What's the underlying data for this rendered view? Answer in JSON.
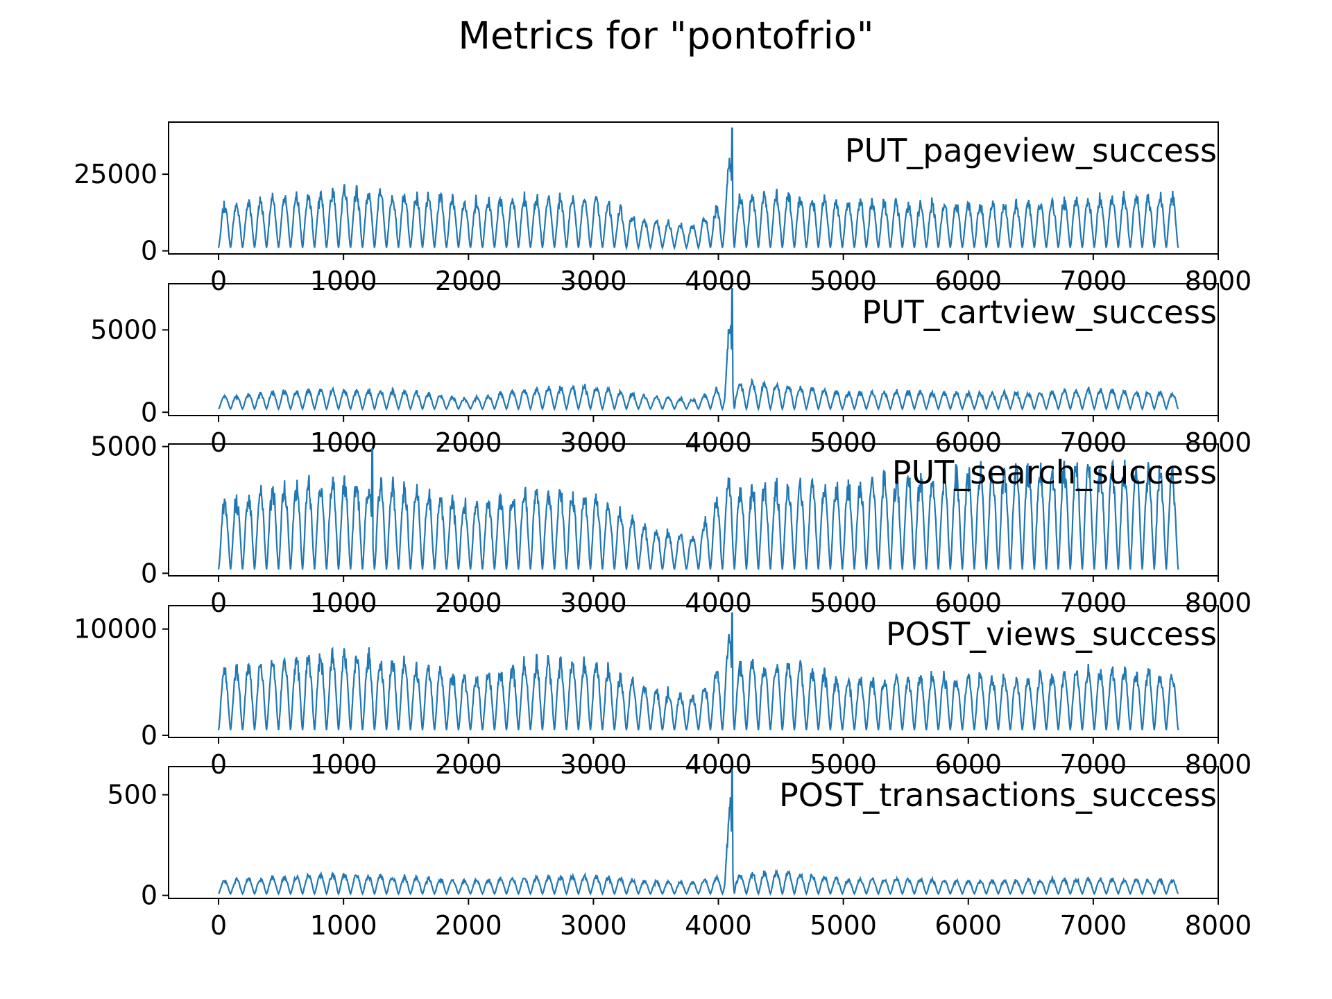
{
  "figure": {
    "title": "Metrics for \"pontofrio\""
  },
  "chart_data": [
    {
      "type": "line",
      "label": "PUT_pageview_success",
      "xlim": [
        -400,
        8000
      ],
      "ylim": [
        -1000,
        42000
      ],
      "xticks": [
        0,
        1000,
        2000,
        3000,
        4000,
        5000,
        6000,
        7000,
        8000
      ],
      "yticks": [
        0,
        25000
      ],
      "color": "#1f77b4",
      "pattern": {
        "x_max": 7680,
        "period": 96,
        "base_low": 1000,
        "envelope_x": [
          0,
          500,
          1000,
          1500,
          2000,
          2500,
          3000,
          3400,
          3800,
          4050,
          4100,
          4150,
          4500,
          5000,
          5500,
          6000,
          6500,
          7000,
          7680
        ],
        "envelope_y": [
          16000,
          19000,
          22000,
          20000,
          18000,
          19000,
          19000,
          11000,
          9000,
          18000,
          40000,
          20000,
          20000,
          18000,
          17000,
          17000,
          17000,
          19000,
          20000
        ],
        "spike_x": 4110,
        "spike_y": 40000
      }
    },
    {
      "type": "line",
      "label": "PUT_cartview_success",
      "xlim": [
        -400,
        8000
      ],
      "ylim": [
        -200,
        7800
      ],
      "xticks": [
        0,
        1000,
        2000,
        3000,
        4000,
        5000,
        6000,
        7000,
        8000
      ],
      "yticks": [
        0,
        5000
      ],
      "color": "#1f77b4",
      "pattern": {
        "x_max": 7680,
        "period": 96,
        "base_low": 200,
        "envelope_x": [
          0,
          500,
          1000,
          1500,
          2000,
          2500,
          3000,
          3400,
          3800,
          4050,
          4100,
          4150,
          4500,
          5000,
          5500,
          6000,
          6500,
          7000,
          7680
        ],
        "envelope_y": [
          1000,
          1400,
          1500,
          1400,
          900,
          1600,
          1700,
          1100,
          900,
          1700,
          7500,
          2000,
          1900,
          1300,
          1400,
          1300,
          1300,
          1500,
          1300
        ],
        "spike_x": 4110,
        "spike_y": 7500
      }
    },
    {
      "type": "line",
      "label": "PUT_search_success",
      "xlim": [
        -400,
        8000
      ],
      "ylim": [
        -100,
        5100
      ],
      "xticks": [
        0,
        1000,
        2000,
        3000,
        4000,
        5000,
        6000,
        7000,
        8000
      ],
      "yticks": [
        0,
        5000
      ],
      "color": "#1f77b4",
      "pattern": {
        "x_max": 7680,
        "period": 96,
        "base_low": 150,
        "envelope_x": [
          0,
          500,
          1000,
          1500,
          2000,
          2500,
          3000,
          3400,
          3800,
          4050,
          4100,
          4150,
          4500,
          5000,
          5500,
          6000,
          6500,
          7000,
          7680
        ],
        "envelope_y": [
          3000,
          3800,
          4000,
          3700,
          3000,
          3600,
          3500,
          2000,
          1600,
          3700,
          4200,
          3700,
          3800,
          3800,
          4200,
          4300,
          4600,
          4600,
          4400
        ],
        "spike_x": 1230,
        "spike_y": 4900
      }
    },
    {
      "type": "line",
      "label": "POST_views_success",
      "xlim": [
        -400,
        8000
      ],
      "ylim": [
        -200,
        12200
      ],
      "xticks": [
        0,
        1000,
        2000,
        3000,
        4000,
        5000,
        6000,
        7000,
        8000
      ],
      "yticks": [
        0,
        10000
      ],
      "color": "#1f77b4",
      "pattern": {
        "x_max": 7680,
        "period": 96,
        "base_low": 500,
        "envelope_x": [
          0,
          500,
          1000,
          1500,
          2000,
          2500,
          3000,
          3400,
          3800,
          4050,
          4100,
          4150,
          4500,
          5000,
          5500,
          6000,
          6500,
          7000,
          7680
        ],
        "envelope_y": [
          6500,
          7800,
          8500,
          7500,
          6000,
          7500,
          7500,
          5000,
          4000,
          7500,
          11500,
          7500,
          7500,
          5800,
          6000,
          6200,
          6000,
          6800,
          6500
        ],
        "spike_x": 4110,
        "spike_y": 11500
      }
    },
    {
      "type": "line",
      "label": "POST_transactions_success",
      "xlim": [
        -400,
        8000
      ],
      "ylim": [
        -15,
        640
      ],
      "xticks": [
        0,
        1000,
        2000,
        3000,
        4000,
        5000,
        6000,
        7000,
        8000
      ],
      "yticks": [
        0,
        500
      ],
      "color": "#1f77b4",
      "pattern": {
        "x_max": 7680,
        "period": 96,
        "base_low": 8,
        "envelope_x": [
          0,
          500,
          1000,
          1500,
          2000,
          2500,
          3000,
          3400,
          3800,
          4050,
          4100,
          4150,
          4500,
          5000,
          5500,
          6000,
          6500,
          7000,
          7680
        ],
        "envelope_y": [
          80,
          100,
          120,
          100,
          80,
          100,
          110,
          80,
          70,
          110,
          620,
          110,
          130,
          90,
          90,
          80,
          85,
          90,
          85
        ],
        "spike_x": 4110,
        "spike_y": 620
      }
    }
  ]
}
